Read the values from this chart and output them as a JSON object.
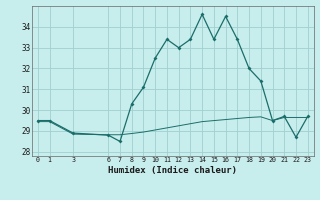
{
  "title": "",
  "xlabel": "Humidex (Indice chaleur)",
  "background_color": "#c8eded",
  "grid_color": "#a0d0d0",
  "line_color": "#1a6e6a",
  "x_ticks": [
    0,
    1,
    3,
    6,
    7,
    8,
    9,
    10,
    11,
    12,
    13,
    14,
    15,
    16,
    17,
    18,
    19,
    20,
    21,
    22,
    23
  ],
  "xlim": [
    -0.5,
    23.5
  ],
  "ylim": [
    27.8,
    35.0
  ],
  "yticks": [
    28,
    29,
    30,
    31,
    32,
    33,
    34
  ],
  "series1_x": [
    0,
    1,
    3,
    6,
    7,
    8,
    9,
    10,
    11,
    12,
    13,
    14,
    15,
    16,
    17,
    18,
    19,
    20,
    21,
    22,
    23
  ],
  "series1_y": [
    29.5,
    29.5,
    28.9,
    28.8,
    28.5,
    30.3,
    31.1,
    32.5,
    33.4,
    33.0,
    33.4,
    34.6,
    33.4,
    34.5,
    33.4,
    32.0,
    31.4,
    29.5,
    29.7,
    28.7,
    29.7
  ],
  "series2_x": [
    0,
    1,
    3,
    6,
    7,
    8,
    9,
    10,
    11,
    12,
    13,
    14,
    15,
    16,
    17,
    18,
    19,
    20,
    21,
    22,
    23
  ],
  "series2_y": [
    29.45,
    29.45,
    28.85,
    28.82,
    28.82,
    28.88,
    28.95,
    29.05,
    29.15,
    29.25,
    29.35,
    29.45,
    29.5,
    29.55,
    29.6,
    29.65,
    29.68,
    29.5,
    29.65,
    29.65,
    29.65
  ]
}
